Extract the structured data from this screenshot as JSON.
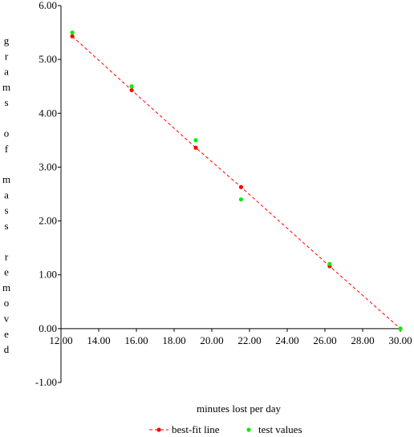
{
  "chart_data": {
    "type": "scatter",
    "title": "",
    "xlabel": "minutes lost per day",
    "ylabel": "grams of mass removed",
    "xlim": [
      12,
      30
    ],
    "ylim": [
      -1,
      6
    ],
    "x_ticks": [
      "12.00",
      "14.00",
      "16.00",
      "18.00",
      "20.00",
      "22.00",
      "24.00",
      "26.00",
      "28.00",
      "30.00"
    ],
    "y_ticks": [
      "6.00",
      "5.00",
      "4.00",
      "3.00",
      "2.00",
      "1.00",
      "0.00",
      "-1.00"
    ],
    "x_tick_values": [
      12,
      14,
      16,
      18,
      20,
      22,
      24,
      26,
      28,
      30
    ],
    "y_tick_values": [
      6,
      5,
      4,
      3,
      2,
      1,
      0,
      -1
    ],
    "legend_position": "bottom",
    "series": [
      {
        "name": "best-fit line",
        "style": "dashed-line-with-markers",
        "color": "#ff0000",
        "x": [
          12.6,
          15.75,
          19.15,
          21.55,
          26.25,
          30.0
        ],
        "y": [
          5.43,
          4.43,
          3.36,
          2.63,
          1.16,
          0.0
        ]
      },
      {
        "name": "test values",
        "style": "markers",
        "color": "#00ee00",
        "x": [
          12.6,
          15.75,
          19.15,
          21.55,
          26.25,
          30.0
        ],
        "y": [
          5.5,
          4.5,
          3.5,
          2.4,
          1.2,
          0.0
        ]
      }
    ]
  }
}
